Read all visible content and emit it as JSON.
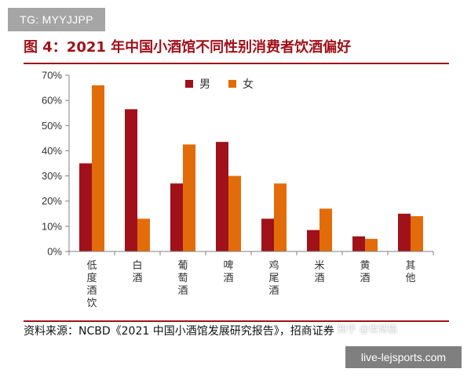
{
  "overlay": {
    "tg_label": "TG: MYYJJPP",
    "site_label": "live-lejsports.com",
    "zhihu_watermark": "知乎 @世博猫"
  },
  "figure": {
    "title": "图 4：2021 年中国小酒馆不同性别消费者饮酒偏好",
    "source": "资料来源：NCBD《2021 中国小酒馆发展研究报告》，招商证券"
  },
  "colors": {
    "male": "#a0111a",
    "female": "#e36c0a",
    "accent": "#a0111a",
    "axis": "#808080"
  },
  "chart_data": {
    "type": "bar",
    "categories": [
      "低度酒饮",
      "白酒",
      "葡萄酒",
      "啤酒",
      "鸡尾酒",
      "米酒",
      "黄酒",
      "其他"
    ],
    "series": [
      {
        "name": "男",
        "values": [
          35,
          56.5,
          27,
          43.5,
          13,
          8.5,
          6,
          15
        ]
      },
      {
        "name": "女",
        "values": [
          66,
          13,
          42.5,
          30,
          27,
          17,
          5,
          14
        ]
      }
    ],
    "ylim": [
      0,
      70
    ],
    "yticks": [
      "0%",
      "10%",
      "20%",
      "30%",
      "40%",
      "50%",
      "60%",
      "70%"
    ],
    "legend_position": "top-center",
    "grid": false
  }
}
